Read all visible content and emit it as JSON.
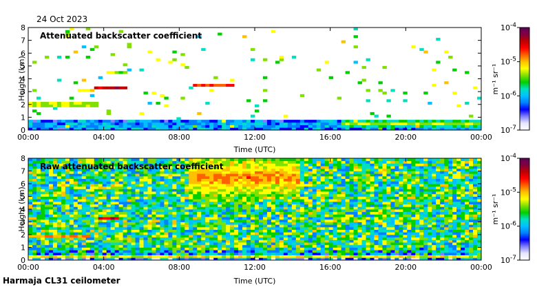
{
  "date": "24 Oct 2023",
  "footer": "Harmaja CL31 ceilometer",
  "colormap": [
    "#ffffff",
    "#e6e6ff",
    "#8080ff",
    "#0000ff",
    "#0080ff",
    "#00c0ff",
    "#00e0c0",
    "#00d000",
    "#80e000",
    "#ffff00",
    "#ffc000",
    "#ff6000",
    "#ff0000",
    "#c00000",
    "#800040",
    "#60005a"
  ],
  "chart_data": [
    {
      "type": "heatmap",
      "title": "Attenuated backscatter coefficient",
      "xlabel": "Time (UTC)",
      "ylabel": "Height (km)",
      "xticks": [
        "00:00",
        "04:00",
        "08:00",
        "12:00",
        "16:00",
        "20:00",
        "00:00"
      ],
      "xlim_hours": [
        0,
        24
      ],
      "yticks": [
        "0",
        "1",
        "2",
        "3",
        "4",
        "5",
        "6",
        "7",
        "8"
      ],
      "ylim_km": [
        0,
        8
      ],
      "colorbar": {
        "scale": "log",
        "range": [
          1e-07,
          0.0001
        ],
        "ticks": [
          {
            "base": "10",
            "exp": "-7"
          },
          {
            "base": "10",
            "exp": "-6"
          },
          {
            "base": "10",
            "exp": "-5"
          },
          {
            "base": "10",
            "exp": "-4"
          }
        ],
        "unit": "m⁻¹ sr⁻¹"
      },
      "background_level": 0,
      "noise_level": 0.03,
      "layers": [
        {
          "t0": 0,
          "t1": 3.8,
          "h": 2.0,
          "dh": 0.12,
          "level": 0.85
        },
        {
          "t0": 2.7,
          "t1": 3.5,
          "h": 3.15,
          "dh": 0.1,
          "level": 0.8
        },
        {
          "t0": 3.5,
          "t1": 5.3,
          "h": 3.3,
          "dh": 0.15,
          "level": 0.88
        },
        {
          "t0": 4.2,
          "t1": 5.1,
          "h": 4.55,
          "dh": 0.07,
          "level": 0.75
        },
        {
          "t0": 6.9,
          "t1": 7.3,
          "h": 3.6,
          "dh": 0.07,
          "level": 0.8
        },
        {
          "t0": 8.8,
          "t1": 10.8,
          "h": 3.45,
          "dh": 0.12,
          "level": 0.92
        },
        {
          "t0": 0,
          "t1": 24,
          "h": 0.35,
          "dh": 0.25,
          "level": 0.3
        },
        {
          "t0": 16.5,
          "t1": 24,
          "h": 0.5,
          "dh": 0.35,
          "level": 0.55
        }
      ]
    },
    {
      "type": "heatmap",
      "title": "Raw attenuated backscatter coefficient",
      "xlabel": "Time (UTC)",
      "ylabel": "Height (km)",
      "xticks": [
        "00:00",
        "04:00",
        "08:00",
        "12:00",
        "16:00",
        "20:00",
        "00:00"
      ],
      "xlim_hours": [
        0,
        24
      ],
      "yticks": [
        "0",
        "1",
        "2",
        "3",
        "4",
        "5",
        "6",
        "7",
        "8"
      ],
      "ylim_km": [
        0,
        8
      ],
      "colorbar": {
        "scale": "log",
        "range": [
          1e-07,
          0.0001
        ],
        "ticks": [
          {
            "base": "10",
            "exp": "-7"
          },
          {
            "base": "10",
            "exp": "-6"
          },
          {
            "base": "10",
            "exp": "-5"
          },
          {
            "base": "10",
            "exp": "-4"
          }
        ],
        "unit": "m⁻¹ sr⁻¹"
      },
      "background_level": 0.45,
      "noise_level": 0.2,
      "layers": [
        {
          "t0": 0,
          "t1": 3.3,
          "h": 1.95,
          "dh": 0.12,
          "level": 0.85
        },
        {
          "t0": 3.6,
          "t1": 4.9,
          "h": 3.3,
          "dh": 0.12,
          "level": 0.85
        },
        {
          "t0": 8.8,
          "t1": 10.6,
          "h": 3.4,
          "dh": 0.1,
          "level": 0.85
        },
        {
          "t0": 0,
          "t1": 24,
          "h": 0.3,
          "dh": 0.18,
          "level": 0.6
        },
        {
          "t0": 8.5,
          "t1": 14.5,
          "h": 6.5,
          "dh": 1.8,
          "level": 0.72
        }
      ]
    }
  ]
}
